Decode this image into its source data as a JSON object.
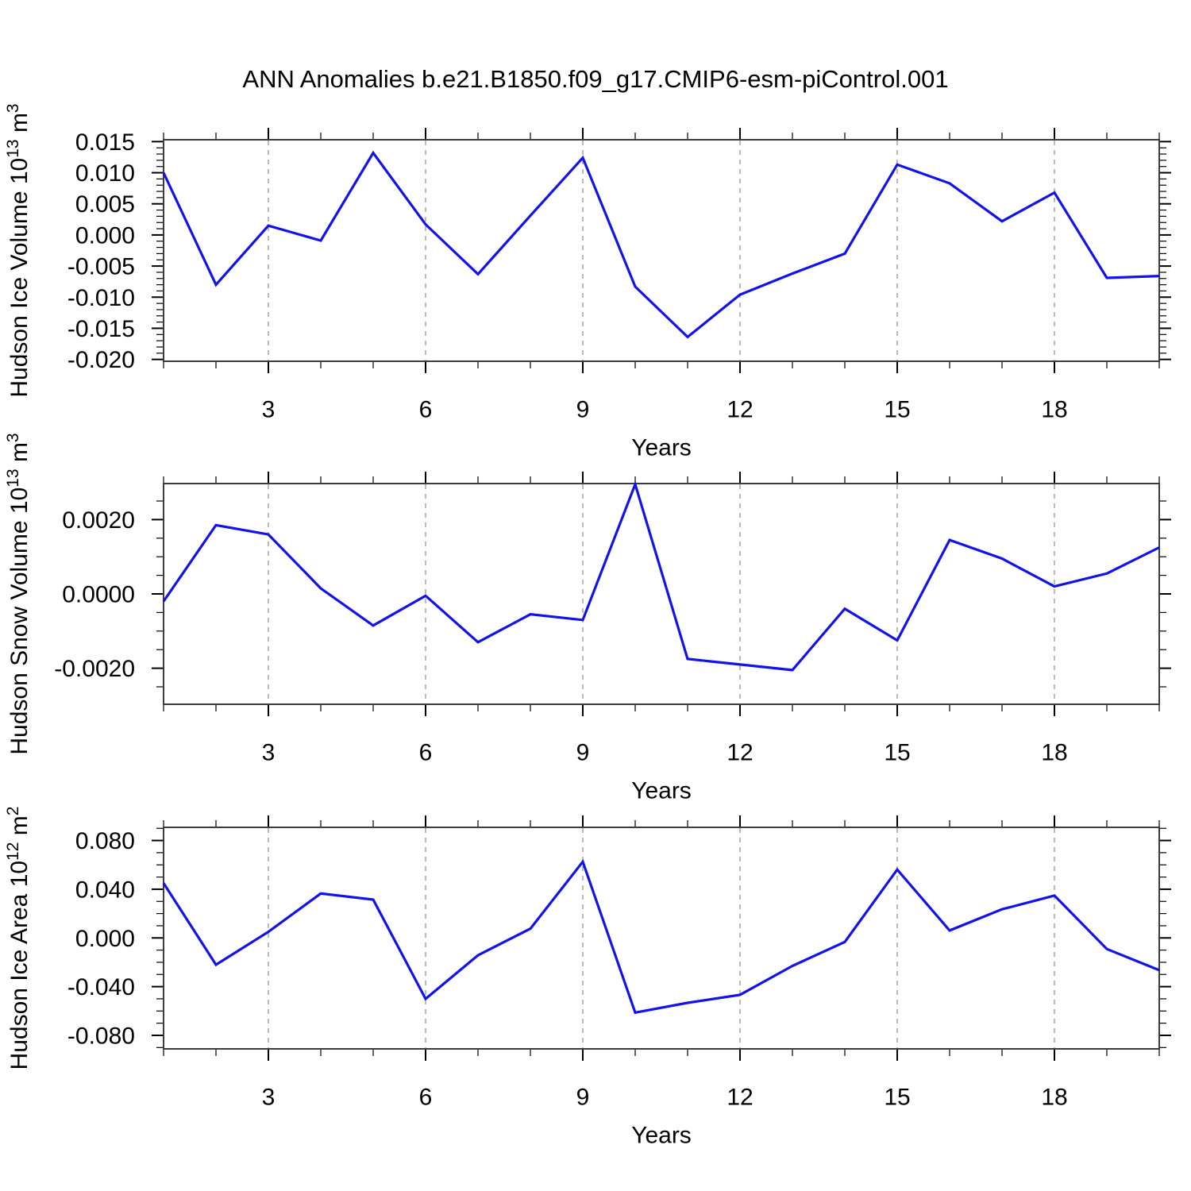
{
  "chart_data": {
    "type": "line",
    "title": "ANN Anomalies b.e21.B1850.f09_g17.CMIP6-esm-piControl.001",
    "xlabel": "Years",
    "x": [
      1,
      2,
      3,
      4,
      5,
      6,
      7,
      8,
      9,
      10,
      11,
      12,
      13,
      14,
      15,
      16,
      17,
      18,
      19,
      20
    ],
    "xlim": [
      1,
      20
    ],
    "xticks": [
      3,
      6,
      9,
      12,
      15,
      18
    ],
    "xtick_labels": [
      "3",
      "6",
      "9",
      "12",
      "15",
      "18"
    ],
    "x_minor_step": 1,
    "grid": "vertical-dashed-at-major-xticks",
    "legend": "none",
    "colors": {
      "line": "#1212ec",
      "grid": "#969696",
      "frame": "#3c3c3c",
      "tick": "#000000",
      "text": "#000000",
      "background": "#ffffff"
    },
    "panels": [
      {
        "name": "hudson-ice-volume",
        "ylabel": "Hudson Ice Volume 10^13 m^3",
        "ylabel_segments": [
          {
            "text": "Hudson Ice Volume 10",
            "sup": false
          },
          {
            "text": "13",
            "sup": true
          },
          {
            "text": " m",
            "sup": false
          },
          {
            "text": "3",
            "sup": true
          }
        ],
        "ylim": [
          -0.0203,
          0.0153
        ],
        "yticks": [
          0.015,
          0.01,
          0.005,
          0.0,
          -0.005,
          -0.01,
          -0.015,
          -0.02
        ],
        "ytick_labels": [
          "0.015",
          "0.010",
          "0.005",
          "0.000",
          "-0.005",
          "-0.010",
          "-0.015",
          "-0.020"
        ],
        "y_minor_step": 0.001,
        "values": [
          0.01,
          -0.008,
          0.0015,
          -0.0009,
          0.0132,
          0.0017,
          -0.0063,
          0.0031,
          0.0124,
          -0.0083,
          -0.0164,
          -0.0096,
          -0.0062,
          -0.003,
          0.0113,
          0.0083,
          0.0022,
          0.0068,
          -0.0069,
          -0.0066
        ]
      },
      {
        "name": "hudson-snow-volume",
        "ylabel": "Hudson Snow Volume 10^13 m^3",
        "ylabel_segments": [
          {
            "text": "Hudson Snow Volume 10",
            "sup": false
          },
          {
            "text": "13",
            "sup": true
          },
          {
            "text": " m",
            "sup": false
          },
          {
            "text": "3",
            "sup": true
          }
        ],
        "ylim": [
          -0.00297,
          0.00297
        ],
        "yticks": [
          0.002,
          0.0,
          -0.002
        ],
        "ytick_labels": [
          "0.0020",
          "0.0000",
          "-0.0020"
        ],
        "y_minor_step": 0.0005,
        "values": [
          -0.0002,
          0.00185,
          0.0016,
          0.00015,
          -0.00085,
          -5e-05,
          -0.0013,
          -0.00055,
          -0.0007,
          0.00295,
          -0.00175,
          -0.0019,
          -0.00205,
          -0.0004,
          -0.00125,
          0.00145,
          0.00095,
          0.0002,
          0.00055,
          0.00125
        ]
      },
      {
        "name": "hudson-ice-area",
        "ylabel": "Hudson Ice Area 10^12 m^2",
        "ylabel_segments": [
          {
            "text": "Hudson Ice Area 10",
            "sup": false
          },
          {
            "text": "12",
            "sup": true
          },
          {
            "text": " m",
            "sup": false
          },
          {
            "text": "2",
            "sup": true
          }
        ],
        "ylim": [
          -0.0911,
          0.0908
        ],
        "yticks": [
          0.08,
          0.04,
          0.0,
          -0.04,
          -0.08
        ],
        "ytick_labels": [
          "0.080",
          "0.040",
          "0.000",
          "-0.040",
          "-0.080"
        ],
        "y_minor_step": 0.01,
        "values": [
          0.045,
          -0.022,
          0.005,
          0.0365,
          0.0315,
          -0.05,
          -0.0142,
          0.0076,
          0.0626,
          -0.0613,
          -0.0533,
          -0.0467,
          -0.023,
          -0.0033,
          0.0561,
          0.0061,
          0.0235,
          0.0348,
          -0.0091,
          -0.0265
        ]
      }
    ]
  }
}
